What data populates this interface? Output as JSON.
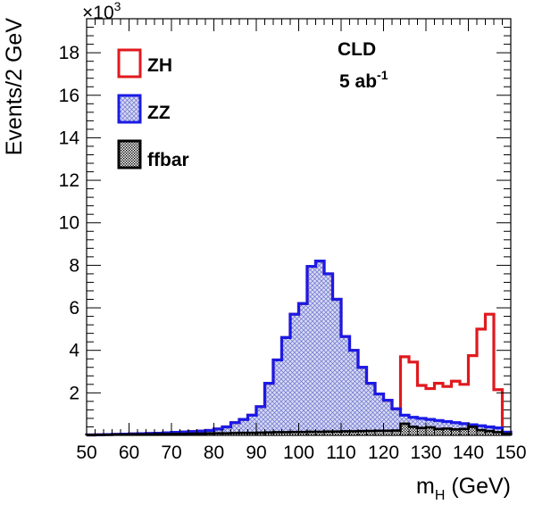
{
  "chart_data": {
    "type": "histogram",
    "title": "",
    "xlabel": "m",
    "xlabel_sub": "H",
    "xlabel_unit": " (GeV)",
    "ylabel": "Events/2 GeV",
    "yscale_label": "×10",
    "yscale_exp": "3",
    "xlim": [
      50,
      150
    ],
    "ylim": [
      0,
      19.6
    ],
    "bin_width": 2,
    "x_ticks": [
      50,
      60,
      70,
      80,
      90,
      100,
      110,
      120,
      130,
      140,
      150
    ],
    "x_tick_labels": [
      "50",
      "60",
      "70",
      "80",
      "90",
      "100",
      "110",
      "120",
      "130",
      "140",
      "150"
    ],
    "y_ticks": [
      2,
      4,
      6,
      8,
      10,
      12,
      14,
      16,
      18
    ],
    "y_tick_labels": [
      "2",
      "4",
      "6",
      "8",
      "10",
      "12",
      "14",
      "16",
      "18"
    ],
    "annotation": {
      "experiment": "CLD",
      "lumi": "5 ab",
      "lumi_exp": "-1"
    },
    "legend_position": "top-left",
    "bin_edges": [
      50,
      52,
      54,
      56,
      58,
      60,
      62,
      64,
      66,
      68,
      70,
      72,
      74,
      76,
      78,
      80,
      82,
      84,
      86,
      88,
      90,
      92,
      94,
      96,
      98,
      100,
      102,
      104,
      106,
      108,
      110,
      112,
      114,
      116,
      118,
      120,
      122,
      124,
      126,
      128,
      130,
      132,
      134,
      136,
      138,
      140,
      142,
      144,
      146,
      148,
      150
    ],
    "series": [
      {
        "name": "ZH",
        "color": "#e0191e",
        "style": "outline",
        "values": [
          0.02,
          0.03,
          0.04,
          0.05,
          0.06,
          0.07,
          0.08,
          0.09,
          0.1,
          0.12,
          0.14,
          0.16,
          0.18,
          0.2,
          0.23,
          0.3,
          0.4,
          0.6,
          0.75,
          0.95,
          1.35,
          2.45,
          3.55,
          4.6,
          5.7,
          6.2,
          7.95,
          8.2,
          7.6,
          6.4,
          4.65,
          4.0,
          3.2,
          2.45,
          1.95,
          1.65,
          1.25,
          3.7,
          3.45,
          2.35,
          2.2,
          2.45,
          2.3,
          2.55,
          2.4,
          3.75,
          5.0,
          5.7,
          2.15,
          0.15
        ]
      },
      {
        "name": "ZZ",
        "color": "#1a1ae6",
        "fill_color": "#c4c8ee",
        "style": "hatched",
        "values": [
          0.02,
          0.03,
          0.04,
          0.05,
          0.06,
          0.07,
          0.08,
          0.09,
          0.1,
          0.12,
          0.14,
          0.16,
          0.18,
          0.2,
          0.23,
          0.3,
          0.4,
          0.6,
          0.75,
          0.95,
          1.35,
          2.45,
          3.55,
          4.6,
          5.7,
          6.2,
          7.95,
          8.2,
          7.6,
          6.4,
          4.65,
          4.0,
          3.2,
          2.45,
          1.95,
          1.65,
          1.25,
          0.95,
          0.85,
          0.8,
          0.75,
          0.7,
          0.65,
          0.6,
          0.55,
          0.5,
          0.45,
          0.4,
          0.35,
          0.15
        ]
      },
      {
        "name": "ffbar",
        "color": "#000000",
        "fill_color": "#a8a8a8",
        "style": "dotted",
        "values": [
          0.02,
          0.03,
          0.03,
          0.04,
          0.04,
          0.05,
          0.05,
          0.05,
          0.06,
          0.06,
          0.07,
          0.07,
          0.08,
          0.08,
          0.09,
          0.1,
          0.1,
          0.11,
          0.12,
          0.12,
          0.13,
          0.14,
          0.15,
          0.15,
          0.16,
          0.16,
          0.17,
          0.17,
          0.18,
          0.18,
          0.19,
          0.19,
          0.2,
          0.21,
          0.22,
          0.22,
          0.23,
          0.55,
          0.4,
          0.35,
          0.38,
          0.3,
          0.32,
          0.28,
          0.3,
          0.4,
          0.25,
          0.2,
          0.15,
          0.08
        ]
      }
    ]
  }
}
